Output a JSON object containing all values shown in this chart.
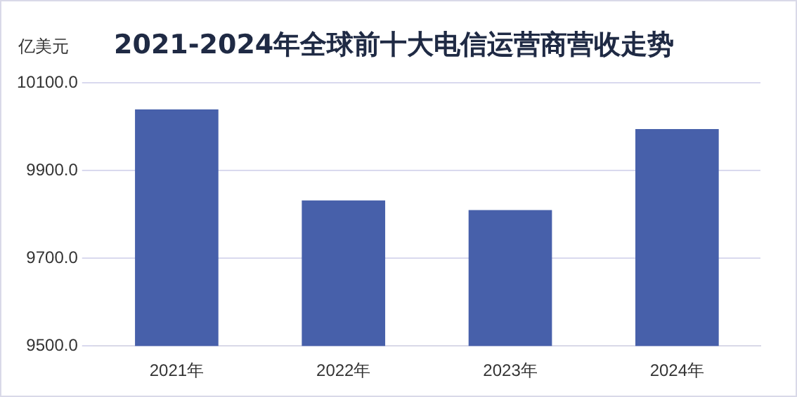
{
  "chart_data": {
    "type": "bar",
    "title": "2021-2024年全球前十大电信运营商营收走势",
    "ylabel": "亿美元",
    "categories": [
      "2021年",
      "2022年",
      "2023年",
      "2024年"
    ],
    "values": [
      10040,
      9832,
      9810,
      9995
    ],
    "color": "#4760aa",
    "ylim": [
      9500,
      10100
    ],
    "yticks": [
      {
        "value": 9500,
        "label": "9500.0"
      },
      {
        "value": 9700,
        "label": "9700.0"
      },
      {
        "value": 9900,
        "label": "9900.0"
      },
      {
        "value": 10100,
        "label": "10100.0"
      }
    ],
    "grid": "y"
  }
}
